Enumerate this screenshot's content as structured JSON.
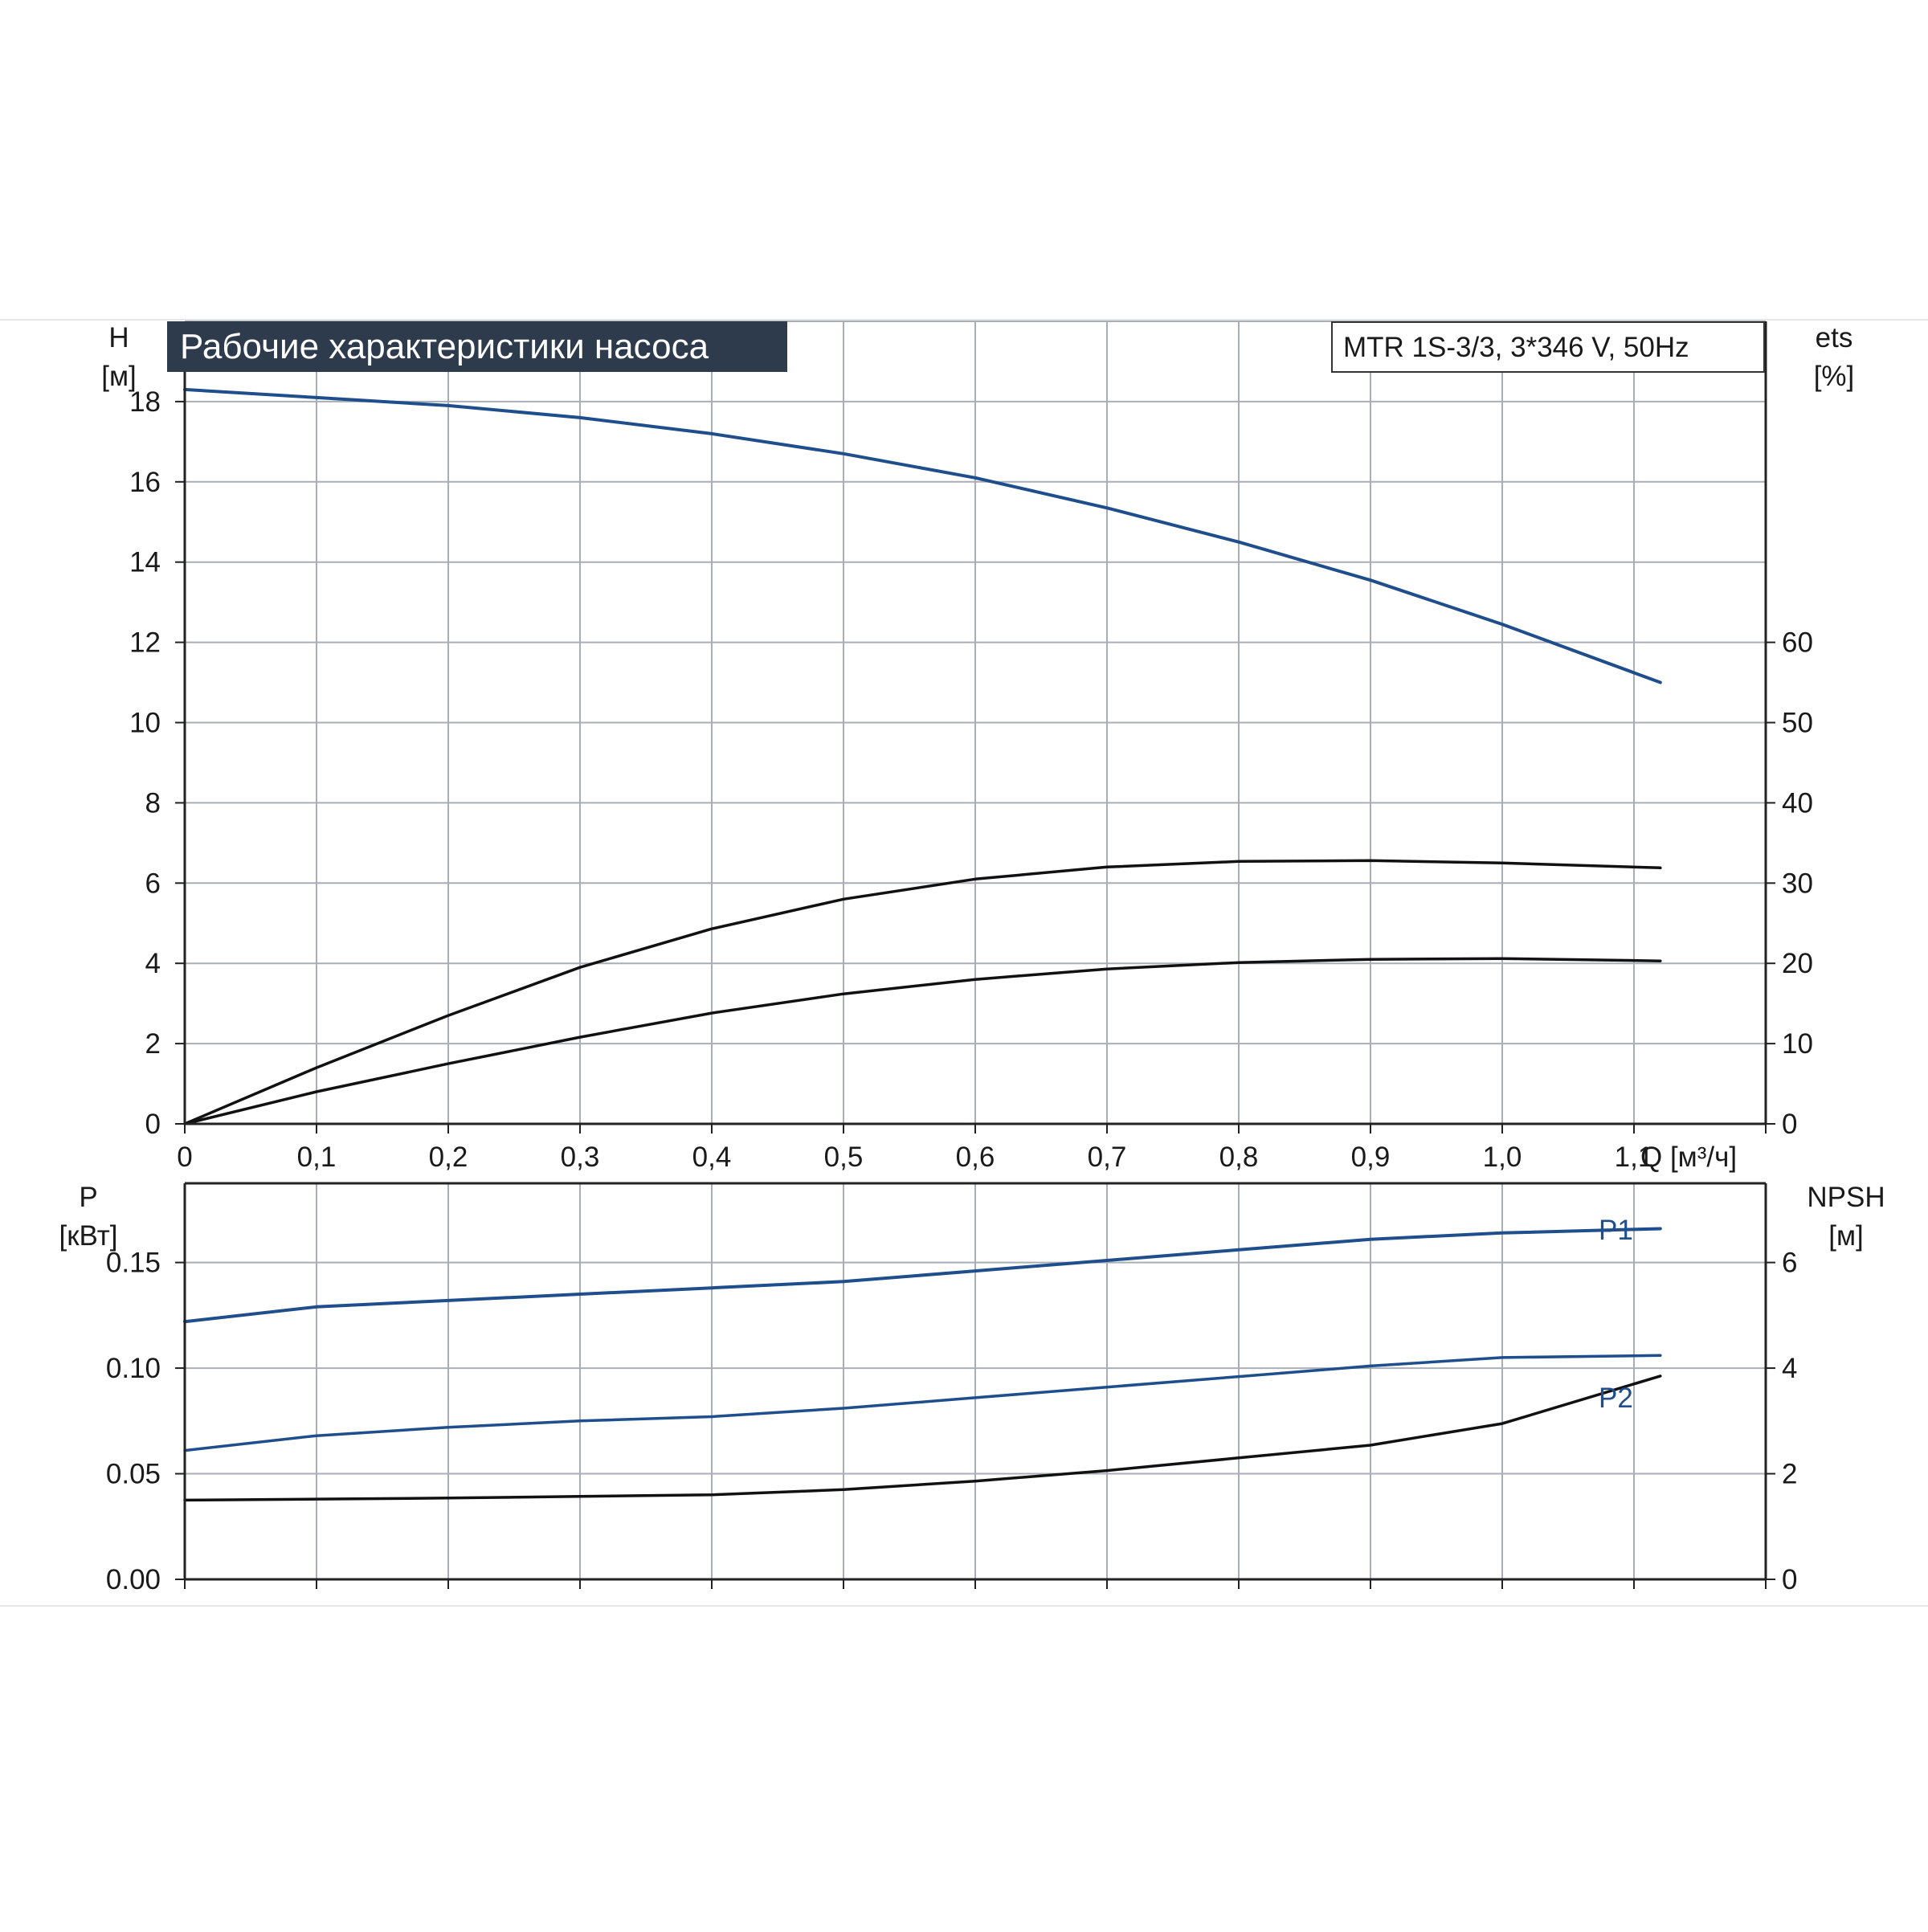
{
  "chart_data": [
    {
      "panel": "top",
      "type": "line",
      "title": "Рабочие характеристики насоса",
      "model_label": "MTR 1S-3/3, 3*346 V, 50Hz",
      "xlabel": "Q [м³/ч]",
      "ylabel_left": "H",
      "ylabel_left_unit": "[м]",
      "ylabel_right": "ets",
      "ylabel_right_unit": "[%]",
      "xlim": [
        0,
        1.2
      ],
      "ylim": [
        0,
        20
      ],
      "ylim_right": [
        0,
        100
      ],
      "xticks": [
        "0",
        "0,1",
        "0,2",
        "0,3",
        "0,4",
        "0,5",
        "0,6",
        "0,7",
        "0,8",
        "0,9",
        "1,0",
        "1,1"
      ],
      "xtick_values": [
        0,
        0.1,
        0.2,
        0.3,
        0.4,
        0.5,
        0.6,
        0.7,
        0.8,
        0.9,
        1.0,
        1.1
      ],
      "yticks_left": [
        0,
        2,
        4,
        6,
        8,
        10,
        12,
        14,
        16,
        18
      ],
      "yticks_right": [
        0,
        10,
        20,
        30,
        40,
        50,
        60
      ],
      "grid": true,
      "series": [
        {
          "color": "#1f4e8c",
          "axis": "left",
          "x": [
            0,
            0.1,
            0.2,
            0.3,
            0.4,
            0.5,
            0.6,
            0.7,
            0.8,
            0.9,
            1.0,
            1.12
          ],
          "y": [
            18.3,
            18.1,
            17.9,
            17.6,
            17.2,
            16.7,
            16.1,
            15.35,
            14.5,
            13.55,
            12.45,
            11.0
          ]
        },
        {
          "color": "#111111",
          "axis": "right",
          "x": [
            0,
            0.1,
            0.2,
            0.3,
            0.4,
            0.5,
            0.6,
            0.7,
            0.8,
            0.9,
            1.0,
            1.12
          ],
          "y": [
            0,
            7,
            13.5,
            19.5,
            24.3,
            28.0,
            30.5,
            32.0,
            32.7,
            32.8,
            32.5,
            31.9
          ]
        },
        {
          "color": "#111111",
          "axis": "right",
          "x": [
            0,
            0.1,
            0.2,
            0.3,
            0.4,
            0.5,
            0.6,
            0.7,
            0.8,
            0.9,
            1.0,
            1.12
          ],
          "y": [
            0,
            4.0,
            7.5,
            10.8,
            13.8,
            16.2,
            18.0,
            19.3,
            20.1,
            20.5,
            20.6,
            20.3
          ]
        }
      ]
    },
    {
      "panel": "bottom",
      "type": "line",
      "ylabel_left": "P",
      "ylabel_left_unit": "[кВт]",
      "ylabel_right": "NPSH",
      "ylabel_right_unit": "[м]",
      "xlim": [
        0,
        1.2
      ],
      "ylim": [
        0,
        0.1875
      ],
      "ylim_right": [
        0,
        7.5
      ],
      "yticks_left": [
        "0.00",
        "0.05",
        "0.10",
        "0.15"
      ],
      "ytick_left_values": [
        0,
        0.05,
        0.1,
        0.15
      ],
      "yticks_right": [
        0,
        2,
        4,
        6
      ],
      "grid": true,
      "series": [
        {
          "name": "P1",
          "color": "#1f4e8c",
          "axis": "left",
          "x": [
            0,
            0.1,
            0.2,
            0.3,
            0.4,
            0.5,
            0.6,
            0.7,
            0.8,
            0.9,
            1.0,
            1.12
          ],
          "y": [
            0.122,
            0.129,
            0.132,
            0.135,
            0.138,
            0.141,
            0.146,
            0.151,
            0.156,
            0.161,
            0.164,
            0.166
          ]
        },
        {
          "name": "P2",
          "color": "#1f4e8c",
          "axis": "left",
          "x": [
            0,
            0.1,
            0.2,
            0.3,
            0.4,
            0.5,
            0.6,
            0.7,
            0.8,
            0.9,
            1.0,
            1.12
          ],
          "y": [
            0.061,
            0.068,
            0.072,
            0.075,
            0.077,
            0.081,
            0.086,
            0.091,
            0.096,
            0.101,
            0.105,
            0.106
          ]
        },
        {
          "color": "#111111",
          "axis": "right",
          "x": [
            0,
            0.1,
            0.2,
            0.3,
            0.4,
            0.5,
            0.6,
            0.7,
            0.8,
            0.9,
            1.0,
            1.12
          ],
          "y": [
            1.5,
            1.52,
            1.54,
            1.57,
            1.6,
            1.7,
            1.86,
            2.06,
            2.3,
            2.54,
            2.95,
            3.85
          ]
        }
      ]
    }
  ]
}
